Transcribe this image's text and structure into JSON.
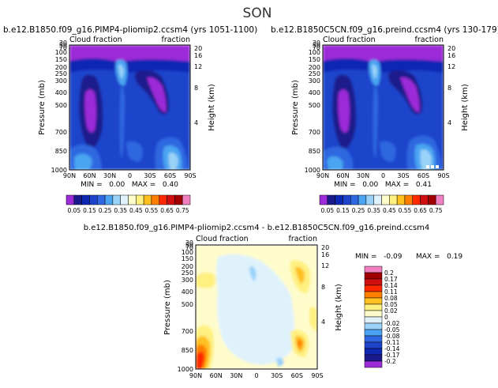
{
  "figure": {
    "title": "SON"
  },
  "chart_data": [
    {
      "type": "heatmap",
      "title": "b.e12.B1850.f09_g16.PIMP4-pliomip2.ccsm4 (yrs 1051-1100)",
      "left_label": "Cloud fraction",
      "right_label": "fraction",
      "xlabel": "",
      "ylabel": "Pressure (mb)",
      "y2label": "Height (km)",
      "xticks": [
        "90N",
        "60N",
        "30N",
        "0",
        "30S",
        "60S",
        "90S"
      ],
      "yticks": [
        "1000",
        "850",
        "700",
        "500",
        "400",
        "300",
        "250",
        "200",
        "150",
        "100",
        "70",
        "50",
        "30"
      ],
      "y2ticks": [
        "4",
        "8",
        "12",
        "16",
        "20"
      ],
      "stats": "MIN =   0.00   MAX =   0.40",
      "min": 0.0,
      "max": 0.4
    },
    {
      "type": "heatmap",
      "title": "b.e12.B1850C5CN.f09_g16.preind.ccsm4 (yrs 130-179)",
      "left_label": "Cloud fraction",
      "right_label": "fraction",
      "xlabel": "",
      "ylabel": "Pressure (mb)",
      "y2label": "Height (km)",
      "xticks": [
        "90N",
        "60N",
        "30N",
        "0",
        "30S",
        "60S",
        "90S"
      ],
      "yticks": [
        "1000",
        "850",
        "700",
        "500",
        "400",
        "300",
        "250",
        "200",
        "150",
        "100",
        "70",
        "50",
        "30"
      ],
      "y2ticks": [
        "4",
        "8",
        "12",
        "16",
        "20"
      ],
      "stats": "MIN =   0.00   MAX =   0.41",
      "min": 0.0,
      "max": 0.41
    },
    {
      "type": "heatmap",
      "title": "b.e12.B1850.f09_g16.PIMP4-pliomip2.ccsm4 - b.e12.B1850C5CN.f09_g16.preind.ccsm4",
      "left_label": "Cloud fraction",
      "right_label": "fraction",
      "xlabel": "",
      "ylabel": "Pressure (mb)",
      "y2label": "Height (km)",
      "xticks": [
        "90N",
        "60N",
        "30N",
        "0",
        "30S",
        "60S",
        "90S"
      ],
      "yticks": [
        "1000",
        "850",
        "700",
        "500",
        "400",
        "300",
        "250",
        "200",
        "150",
        "100",
        "70",
        "50",
        "30"
      ],
      "y2ticks": [
        "4",
        "8",
        "12",
        "16",
        "20"
      ],
      "stats_min": "MIN =   -0.09",
      "stats_max": "MAX =   0.19",
      "min": -0.09,
      "max": 0.19
    }
  ],
  "colorbar_top": {
    "labels": [
      "0.05",
      "0.1",
      "0.15",
      "0.2",
      "0.25",
      "0.3",
      "0.35",
      "0.4",
      "0.45",
      "0.5",
      "0.55",
      "0.6",
      "0.65",
      "0.7",
      "0.75"
    ],
    "colors": [
      "#9c2cd8",
      "#1a1a8c",
      "#0f28b4",
      "#1f44cc",
      "#2f68e0",
      "#4aa4f2",
      "#9ad2f8",
      "#dff2fc",
      "#fffccc",
      "#fff080",
      "#ffc020",
      "#ff8000",
      "#ff2800",
      "#d01010",
      "#a00000",
      "#f080c0"
    ]
  },
  "colorbar_diff": {
    "labels": [
      "0.2",
      "0.17",
      "0.14",
      "0.11",
      "0.08",
      "0.05",
      "0.02",
      "0",
      "-0.02",
      "-0.05",
      "-0.08",
      "-0.11",
      "-0.14",
      "-0.17",
      "-0.2"
    ],
    "colors": [
      "#f080c0",
      "#a00000",
      "#d01010",
      "#ff2800",
      "#ff8000",
      "#ffc020",
      "#fff080",
      "#fffccc",
      "#dff2fc",
      "#9ad2f8",
      "#4aa4f2",
      "#2f68e0",
      "#1f44cc",
      "#0f28b4",
      "#1a1a8c",
      "#9c2cd8"
    ]
  }
}
